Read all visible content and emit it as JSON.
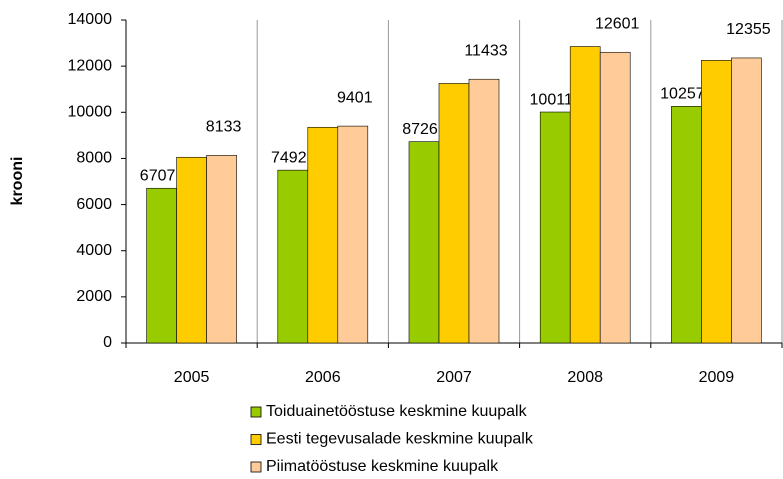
{
  "chart_data": {
    "type": "bar",
    "y_label": "krooni",
    "categories": [
      "2005",
      "2006",
      "2007",
      "2008",
      "2009"
    ],
    "series": [
      {
        "name": "Toiduainetööstuse keskmine kuupalk",
        "color": "#99cc00",
        "values": [
          6707,
          7492,
          8726,
          10011,
          10257
        ],
        "data_labels": true
      },
      {
        "name": "Eesti tegevusalade keskmine kuupalk",
        "color": "#ffcc00",
        "values": [
          8050,
          9350,
          11250,
          12850,
          12250
        ],
        "data_labels": false
      },
      {
        "name": "Piimatööstuse keskmine kuupalk",
        "color": "#ffcc99",
        "values": [
          8133,
          9401,
          11433,
          12601,
          12355
        ],
        "data_labels": true
      }
    ],
    "ylim": [
      0,
      14000
    ],
    "yticks": [
      0,
      2000,
      4000,
      6000,
      8000,
      10000,
      12000,
      14000
    ],
    "legend": "bottom"
  }
}
